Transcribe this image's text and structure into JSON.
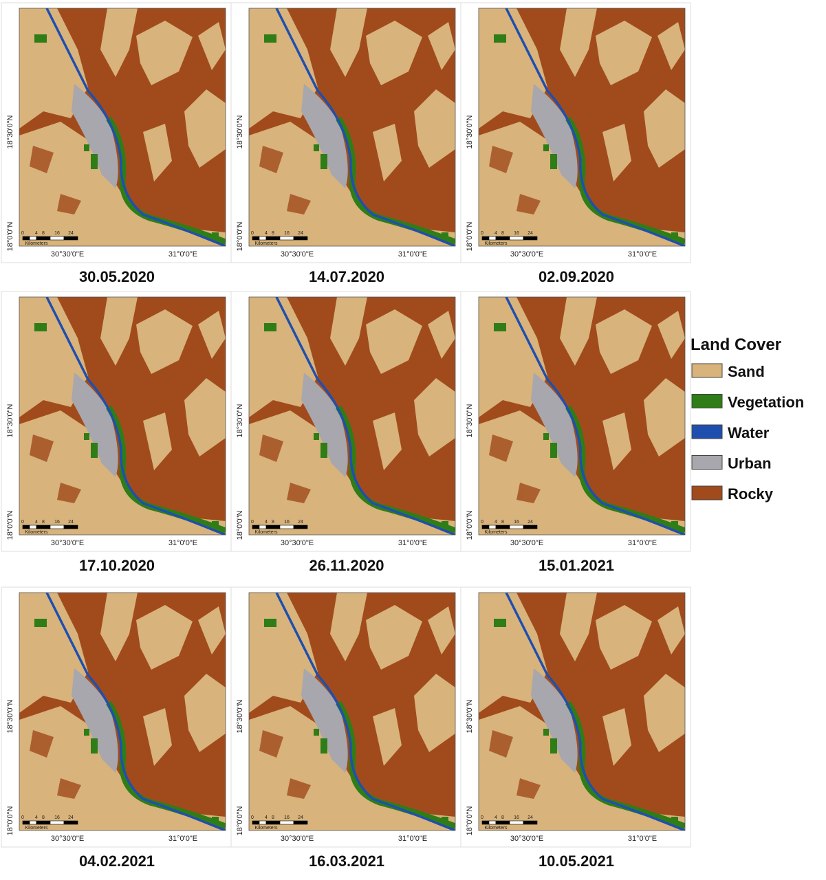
{
  "panels": [
    {
      "date": "30.05.2020"
    },
    {
      "date": "14.07.2020"
    },
    {
      "date": "02.09.2020"
    },
    {
      "date": "17.10.2020"
    },
    {
      "date": "26.11.2020"
    },
    {
      "date": "15.01.2021"
    },
    {
      "date": "04.02.2021"
    },
    {
      "date": "16.03.2021"
    },
    {
      "date": "10.05.2021"
    }
  ],
  "map_labels": {
    "lat": [
      "18°30'0\"N",
      "18°0'0\"N"
    ],
    "lon": [
      "30°30'0\"E",
      "31°0'0\"E"
    ],
    "scale": [
      "0",
      "4",
      "8",
      "16",
      "24"
    ],
    "scale_unit": "Kilometers"
  },
  "legend": {
    "title": "Land Cover",
    "items": [
      {
        "name": "Sand",
        "color": "#d8b37c"
      },
      {
        "name": "Vegetation",
        "color": "#2f7d16"
      },
      {
        "name": "Water",
        "color": "#1f4fae"
      },
      {
        "name": "Urban",
        "color": "#a7a7ad"
      },
      {
        "name": "Rocky",
        "color": "#a14b1d"
      }
    ]
  }
}
